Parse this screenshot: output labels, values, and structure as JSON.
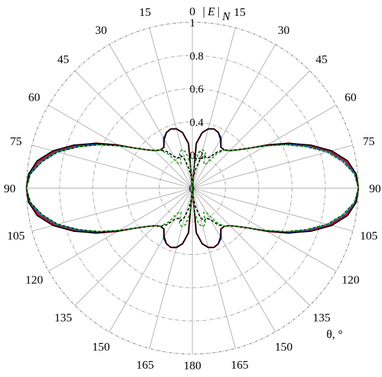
{
  "chart_data": {
    "type": "polar-line",
    "radial_axis": {
      "label_parts": [
        "|",
        "E",
        "|",
        "N"
      ],
      "range": [
        0,
        1
      ],
      "ticks": [
        0,
        0.2,
        0.4,
        0.6,
        0.8,
        1
      ],
      "tick_labels": [
        "0",
        "0.2",
        "0.4",
        "0.6",
        "0.8",
        "1"
      ]
    },
    "angular_axis": {
      "label": "θ, °",
      "unit": "degrees",
      "zero_direction": "top",
      "mirrored": true,
      "right_ticks": [
        0,
        15,
        30,
        45,
        60,
        75,
        90,
        105,
        120,
        135,
        150,
        165,
        180
      ],
      "right_tick_labels": [
        "0",
        "15",
        "30",
        "45",
        "60",
        "75",
        "90",
        "105",
        "120",
        "135",
        "150",
        "165",
        "180"
      ],
      "left_ticks": [
        15,
        30,
        45,
        60,
        75,
        90,
        105,
        120,
        135,
        150,
        165
      ],
      "left_tick_labels": [
        "15",
        "30",
        "45",
        "60",
        "75",
        "90",
        "105",
        "120",
        "135",
        "150",
        "165"
      ]
    },
    "grid": true,
    "symmetric": "left-right and top-bottom (θ ↔ 180−θ)",
    "theta_deg": [
      0,
      5,
      10,
      15,
      20,
      25,
      30,
      35,
      40,
      45,
      50,
      55,
      60,
      65,
      70,
      75,
      80,
      85,
      90
    ],
    "series": [
      {
        "color": "#d40000",
        "style": "solid",
        "width": 2.2,
        "values": [
          0,
          0.27,
          0.34,
          0.37,
          0.38,
          0.37,
          0.34,
          0.3,
          0.3,
          0.32,
          0.36,
          0.42,
          0.52,
          0.64,
          0.75,
          0.86,
          0.94,
          0.99,
          1.0
        ]
      },
      {
        "color": "#1a55cc",
        "style": "solid",
        "width": 1.6,
        "values": [
          0,
          0.27,
          0.34,
          0.37,
          0.38,
          0.37,
          0.35,
          0.3,
          0.3,
          0.32,
          0.36,
          0.42,
          0.51,
          0.63,
          0.74,
          0.85,
          0.93,
          0.985,
          1.0
        ]
      },
      {
        "color": "#000000",
        "style": "solid",
        "width": 1.6,
        "values": [
          0,
          0.27,
          0.34,
          0.37,
          0.38,
          0.37,
          0.34,
          0.3,
          0.3,
          0.32,
          0.36,
          0.42,
          0.52,
          0.64,
          0.76,
          0.87,
          0.95,
          0.99,
          1.0
        ]
      },
      {
        "color": "#000000",
        "style": "dashed",
        "width": 1.6,
        "values": [
          0,
          0.06,
          0.12,
          0.18,
          0.21,
          0.2,
          0.22,
          0.27,
          0.3,
          0.32,
          0.36,
          0.42,
          0.51,
          0.62,
          0.73,
          0.84,
          0.92,
          0.98,
          1.0
        ]
      },
      {
        "color": "#1aa01a",
        "style": "dashed",
        "width": 1.6,
        "values": [
          0,
          0.14,
          0.22,
          0.24,
          0.23,
          0.16,
          0.17,
          0.25,
          0.3,
          0.32,
          0.36,
          0.42,
          0.51,
          0.62,
          0.73,
          0.84,
          0.92,
          0.98,
          1.0
        ]
      }
    ]
  }
}
